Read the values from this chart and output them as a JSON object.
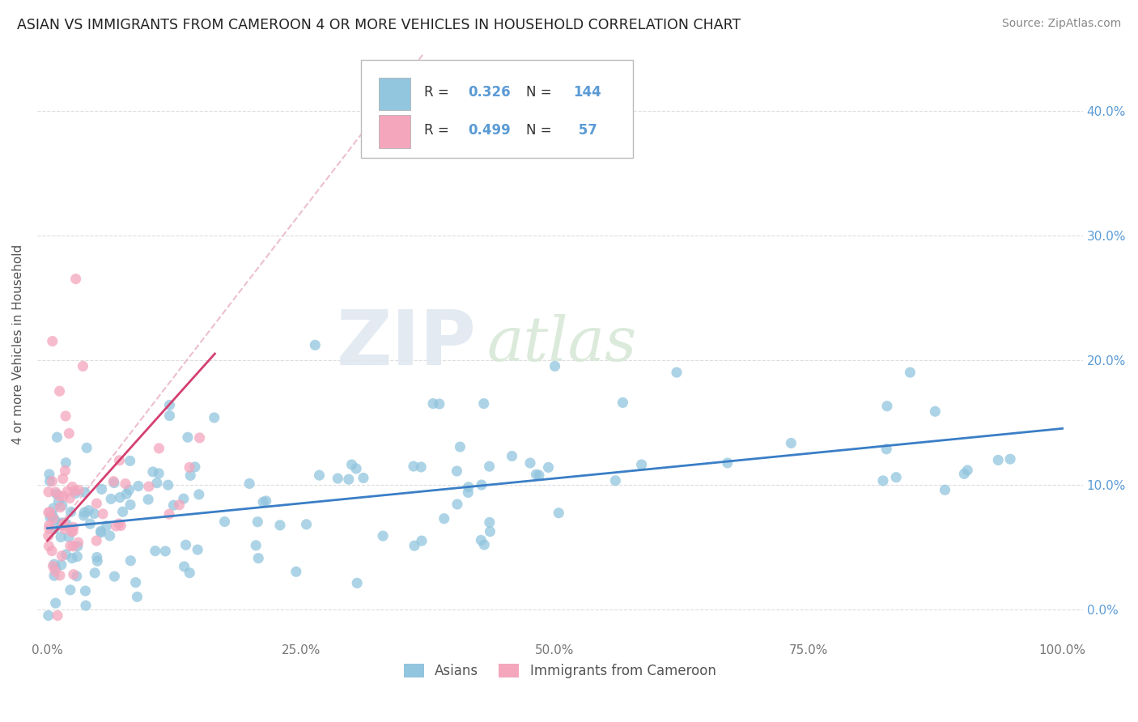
{
  "title": "ASIAN VS IMMIGRANTS FROM CAMEROON 4 OR MORE VEHICLES IN HOUSEHOLD CORRELATION CHART",
  "source": "Source: ZipAtlas.com",
  "ylabel": "4 or more Vehicles in Household",
  "ytick_vals": [
    0.0,
    0.1,
    0.2,
    0.3,
    0.4
  ],
  "ytick_labels": [
    "0.0%",
    "10.0%",
    "20.0%",
    "30.0%",
    "40.0%"
  ],
  "xtick_vals": [
    0.0,
    0.25,
    0.5,
    0.75,
    1.0
  ],
  "xtick_labels": [
    "0.0%",
    "25.0%",
    "50.0%",
    "75.0%",
    "100.0%"
  ],
  "xlim": [
    -0.01,
    1.02
  ],
  "ylim": [
    -0.025,
    0.45
  ],
  "watermark_zip": "ZIP",
  "watermark_atlas": "atlas",
  "legend_asian_R": "0.326",
  "legend_asian_N": "144",
  "legend_cam_R": "0.499",
  "legend_cam_N": " 57",
  "asian_color": "#92C5DE",
  "cam_color": "#F4A6BD",
  "asian_line_color": "#3A7EC6",
  "cam_line_color": "#D44070",
  "cam_dash_color": "#E8B0C0",
  "title_fontsize": 12.5,
  "axis_color": "#888888",
  "grid_color": "#DDDDDD",
  "right_tick_color": "#5B9BD5"
}
